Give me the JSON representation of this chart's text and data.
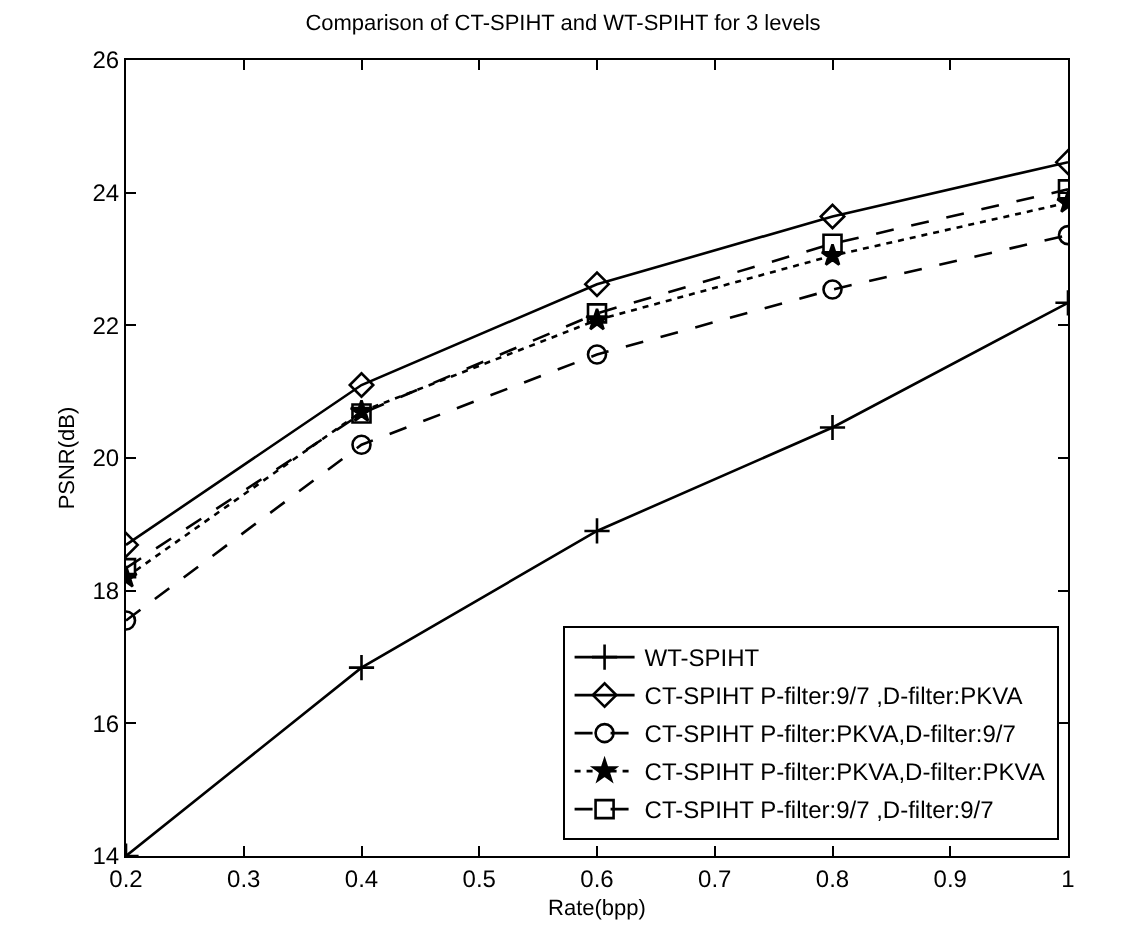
{
  "chart_data": {
    "type": "line",
    "title": "Comparison of CT-SPIHT and WT-SPIHT for 3 levels",
    "xlabel": "Rate(bpp)",
    "ylabel": "PSNR(dB)",
    "x": [
      0.2,
      0.4,
      0.6,
      0.8,
      1
    ],
    "series": [
      {
        "name": "WT-SPIHT",
        "color": "#000000",
        "marker": "cross",
        "line_style": "solid",
        "values": [
          14.0,
          16.84,
          18.9,
          20.46,
          22.34
        ]
      },
      {
        "name": "CT-SPIHT P-filter:9/7 ,D-filter:PKVA",
        "color": "#000000",
        "marker": "diamond",
        "line_style": "solid",
        "values": [
          18.69,
          21.1,
          22.62,
          23.64,
          24.46
        ]
      },
      {
        "name": "CT-SPIHT P-filter:PKVA,D-filter:9/7",
        "color": "#000000",
        "marker": "circle",
        "line_style": "dashed",
        "values": [
          17.55,
          20.2,
          21.56,
          22.54,
          23.36
        ]
      },
      {
        "name": "CT-SPIHT P-filter:PKVA,D-filter:PKVA",
        "color": "#000000",
        "marker": "star",
        "line_style": "dotted",
        "values": [
          18.2,
          20.7,
          22.08,
          23.05,
          23.85
        ]
      },
      {
        "name": "CT-SPIHT P-filter:9/7 ,D-filter:9/7",
        "color": "#000000",
        "marker": "square",
        "line_style": "dashed",
        "values": [
          18.34,
          20.67,
          22.18,
          23.23,
          24.05
        ]
      }
    ],
    "xlim": [
      0.2,
      1
    ],
    "xticks": [
      0.2,
      0.3,
      0.4,
      0.5,
      0.6,
      0.7,
      0.8,
      0.9,
      1
    ],
    "ylim": [
      14,
      26
    ],
    "yticks": [
      14,
      16,
      18,
      20,
      22,
      24,
      26
    ],
    "grid": false,
    "legend": "bottom right"
  }
}
